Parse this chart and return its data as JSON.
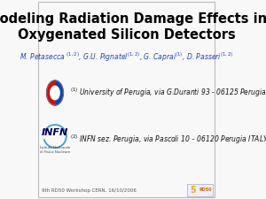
{
  "title_line1": "Modeling Radiation Damage Effects in",
  "title_line2": "Oxygenated Silicon Detectors",
  "title_fontsize": 10.5,
  "title_color": "#000000",
  "authors_text": "M. Petasecca $^{(1,2)}$, G.U. Pignatel$^{(1,2)}$, G. Caprai$^{(1)}$, D. Passeri$^{(1,2)}$",
  "authors_color": "#2244aa",
  "authors_fontsize": 5.5,
  "affil1": "$^{(1)}$ University of Perugia, via G.Duranti 93 - 06125 Perugia ITALY",
  "affil2": "$^{(2)}$ INFN sez. Perugia, via Pascoli 10 – 06120 Perugia ITALY",
  "affil_fontsize": 5.5,
  "affil_color": "#111111",
  "footer": "9th RD50 Workshop CERN, 16/10/2006",
  "footer_fontsize": 4.0,
  "footer_color": "#555555",
  "background_color": "#f8f8f8",
  "border_color": "#bbbbbb",
  "infn_text_color": "#000055",
  "infn_arc_color": "#3399cc",
  "unipg_blue": "#1144aa",
  "unipg_red": "#cc1111",
  "rd50_color": "#cc6600"
}
